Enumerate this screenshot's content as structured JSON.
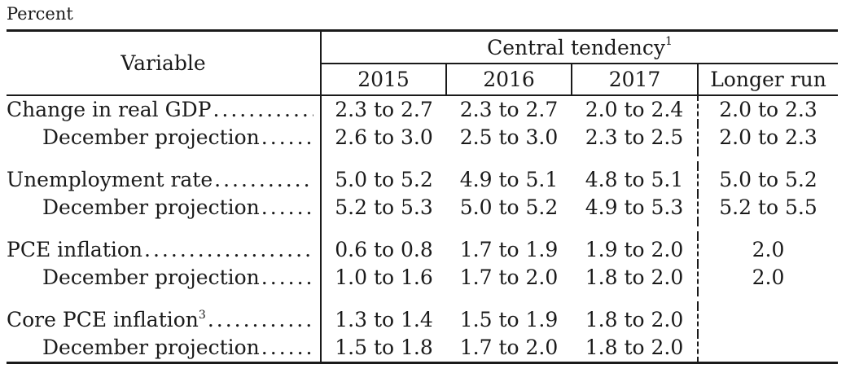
{
  "unit_label": "Percent",
  "header": {
    "variable": "Variable",
    "central_tendency": "Central tendency",
    "central_tendency_note": "1",
    "years": [
      "2015",
      "2016",
      "2017"
    ],
    "longer_run": "Longer run"
  },
  "rows": [
    {
      "label": "Change in real GDP",
      "note": "",
      "values": [
        "2.3 to 2.7",
        "2.3 to 2.7",
        "2.0 to 2.4",
        "2.0 to 2.3"
      ]
    },
    {
      "label": "December projection",
      "note": "",
      "values": [
        "2.6 to 3.0",
        "2.5 to 3.0",
        "2.3 to 2.5",
        "2.0 to 2.3"
      ]
    },
    {
      "label": "Unemployment rate",
      "note": "",
      "values": [
        "5.0 to 5.2",
        "4.9 to 5.1",
        "4.8 to 5.1",
        "5.0 to 5.2"
      ]
    },
    {
      "label": "December projection",
      "note": "",
      "values": [
        "5.2 to 5.3",
        "5.0 to 5.2",
        "4.9 to 5.3",
        "5.2 to 5.5"
      ]
    },
    {
      "label": "PCE inflation",
      "note": "",
      "values": [
        "0.6 to 0.8",
        "1.7 to 1.9",
        "1.9 to 2.0",
        "2.0"
      ]
    },
    {
      "label": "December projection",
      "note": "",
      "values": [
        "1.0 to 1.6",
        "1.7 to 2.0",
        "1.8 to 2.0",
        "2.0"
      ]
    },
    {
      "label": "Core PCE inflation",
      "note": "3",
      "values": [
        "1.3 to 1.4",
        "1.5 to 1.9",
        "1.8 to 2.0",
        ""
      ]
    },
    {
      "label": "December projection",
      "note": "",
      "values": [
        "1.5 to 1.8",
        "1.7 to 2.0",
        "1.8 to 2.0",
        ""
      ]
    }
  ]
}
